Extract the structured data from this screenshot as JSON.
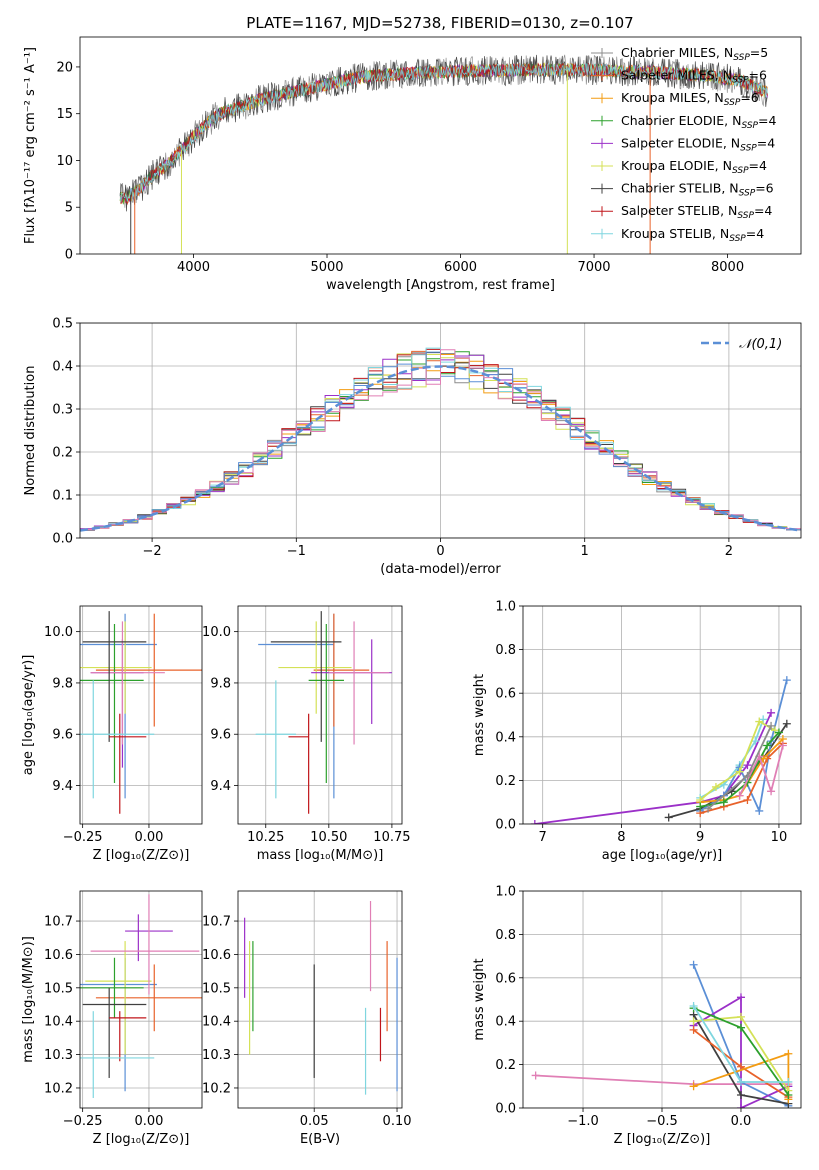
{
  "figure": {
    "title": "PLATE=1167, MJD=52738, FIBERID=0130, z=0.107"
  },
  "colors": {
    "chabrier_miles": "#8c8c8c",
    "salpeter_miles": "#e8622a",
    "kroupa_miles": "#f39c12",
    "chabrier_elodie": "#2ca02c",
    "salpeter_elodie": "#9b30c8",
    "kroupa_elodie": "#d4e157",
    "chabrier_stelib": "#404040",
    "salpeter_stelib": "#c0151a",
    "kroupa_stelib": "#7fd6df",
    "blue": "#5b8fd6",
    "pink": "#e07fb5",
    "gray": "#999999",
    "normal": "#5b8fd6"
  },
  "chart_data": [
    {
      "id": "spectrum",
      "type": "line",
      "xlabel": "wavelength [Angstrom, rest frame]",
      "ylabel": "Flux [fλ10⁻¹⁷ erg cm⁻² s⁻¹ A⁻¹]",
      "xlim": [
        3150,
        8550
      ],
      "ylim": [
        0,
        23.2
      ],
      "xticks": [
        4000,
        5000,
        6000,
        7000,
        8000
      ],
      "yticks": [
        0,
        5,
        10,
        15,
        20
      ],
      "legend_position": "top-right",
      "series": [
        {
          "name": "Chabrier MILES, N",
          "sub": "SSP",
          "eq": "=5",
          "color": "#8c8c8c",
          "marker": "+"
        },
        {
          "name": "Salpeter MILES, N",
          "sub": "SSP",
          "eq": "=6",
          "color": "#e8622a",
          "marker": "|"
        },
        {
          "name": "Kroupa MILES, N",
          "sub": "SSP",
          "eq": "=6",
          "color": "#f39c12",
          "marker": "|"
        },
        {
          "name": "Chabrier ELODIE, N",
          "sub": "SSP",
          "eq": "=4",
          "color": "#2ca02c",
          "marker": "+"
        },
        {
          "name": "Salpeter ELODIE, N",
          "sub": "SSP",
          "eq": "=4",
          "color": "#9b30c8",
          "marker": "|"
        },
        {
          "name": "Kroupa ELODIE, N",
          "sub": "SSP",
          "eq": "=4",
          "color": "#d4e157",
          "marker": "|"
        },
        {
          "name": "Chabrier STELIB, N",
          "sub": "SSP",
          "eq": "=6",
          "color": "#404040",
          "marker": "|"
        },
        {
          "name": "Salpeter STELIB, N",
          "sub": "SSP",
          "eq": "=4",
          "color": "#c0151a",
          "marker": "|"
        },
        {
          "name": "Kroupa STELIB, N",
          "sub": "SSP",
          "eq": "=4",
          "color": "#7fd6df",
          "marker": "|"
        }
      ],
      "continuum": {
        "x": [
          3500,
          3600,
          3700,
          3800,
          3900,
          4000,
          4100,
          4200,
          4300,
          4500,
          4700,
          4900,
          5100,
          5300,
          5500,
          5700,
          5900,
          6100,
          6300,
          6500,
          6700,
          6900,
          7100,
          7300,
          7500,
          7700,
          7900,
          8100,
          8300
        ],
        "y": [
          6.0,
          7.0,
          8.5,
          9.5,
          11.0,
          12.5,
          14.0,
          15.0,
          15.5,
          16.5,
          17.2,
          17.8,
          18.5,
          19.0,
          19.2,
          19.4,
          19.5,
          19.6,
          19.6,
          19.7,
          19.7,
          19.7,
          19.6,
          19.5,
          19.4,
          19.2,
          19.0,
          18.5,
          17.2
        ]
      }
    },
    {
      "id": "residuals",
      "type": "histogram",
      "xlabel": "(data-model)/error",
      "ylabel": "Normed distribution",
      "xlim": [
        -2.5,
        2.5
      ],
      "ylim": [
        0,
        0.5
      ],
      "xticks": [
        -2,
        -1,
        0,
        1,
        2
      ],
      "yticks": [
        0.0,
        0.1,
        0.2,
        0.3,
        0.4,
        0.5
      ],
      "grid": true,
      "legend_position": "top-right",
      "legend_label": "𝒩(0,1)",
      "bin_width": 0.1
    },
    {
      "id": "age_vs_Z",
      "type": "scatter",
      "xlabel": "Z [log₁₀(Z/Z⊙)]",
      "ylabel": "age  [log₁₀(age/yr)]",
      "xlim": [
        -0.26,
        0.2
      ],
      "ylim": [
        9.25,
        10.1
      ],
      "xticks": [
        -0.25,
        0.0
      ],
      "yticks": [
        9.4,
        9.6,
        9.8,
        10.0
      ],
      "grid": true,
      "points": [
        {
          "x": -0.09,
          "y": 9.95,
          "xerr": [
            0.22,
            0.12
          ],
          "yerr": [
            0.6,
            0.12
          ],
          "color": "#5b8fd6"
        },
        {
          "x": 0.02,
          "y": 9.85,
          "xerr": [
            0.22,
            0.2
          ],
          "yerr": [
            0.22,
            0.22
          ],
          "color": "#e8622a"
        },
        {
          "x": -0.09,
          "y": 9.86,
          "xerr": [
            0.18,
            0.1
          ],
          "yerr": [
            0.18,
            0.18
          ],
          "color": "#d4e157"
        },
        {
          "x": -0.13,
          "y": 9.81,
          "xerr": [
            0.14,
            0.11
          ],
          "yerr": [
            0.4,
            0.22
          ],
          "color": "#2ca02c"
        },
        {
          "x": -0.1,
          "y": 9.84,
          "xerr": [
            0.12,
            0.08
          ],
          "yerr": [
            0.37,
            0.13
          ],
          "color": "#9b30c8"
        },
        {
          "x": -0.1,
          "y": 9.84,
          "xerr": [
            0.12,
            0.16
          ],
          "yerr": [
            0.28,
            0.2
          ],
          "color": "#e07fb5"
        },
        {
          "x": -0.15,
          "y": 9.96,
          "xerr": [
            0.1,
            0.14
          ],
          "yerr": [
            0.39,
            0.12
          ],
          "color": "#404040"
        },
        {
          "x": -0.11,
          "y": 9.59,
          "xerr": [
            0.04,
            0.1
          ],
          "yerr": [
            0.3,
            0.09
          ],
          "color": "#c0151a"
        },
        {
          "x": -0.21,
          "y": 9.6,
          "xerr": [
            0.05,
            0.23
          ],
          "yerr": [
            0.25,
            0.21
          ],
          "color": "#7fd6df"
        }
      ]
    },
    {
      "id": "age_vs_mass",
      "type": "scatter",
      "xlabel": "mass [log₁₀(M/M⊙)]",
      "xlim": [
        10.14,
        10.79
      ],
      "ylim": [
        9.25,
        10.1
      ],
      "xticks": [
        10.25,
        10.5,
        10.75
      ],
      "yticks": [
        9.4,
        9.6,
        9.8,
        10.0
      ],
      "grid": true,
      "points": [
        {
          "x": 10.52,
          "y": 9.95,
          "xerr": [
            0.3,
            0.0
          ],
          "yerr": [
            0.6,
            0.12
          ],
          "color": "#5b8fd6"
        },
        {
          "x": 10.52,
          "y": 9.85,
          "xerr": [
            0.08,
            0.14
          ],
          "yerr": [
            0.22,
            0.22
          ],
          "color": "#e8622a"
        },
        {
          "x": 10.45,
          "y": 9.86,
          "xerr": [
            0.15,
            0.14
          ],
          "yerr": [
            0.18,
            0.18
          ],
          "color": "#d4e157"
        },
        {
          "x": 10.49,
          "y": 9.81,
          "xerr": [
            0.07,
            0.07
          ],
          "yerr": [
            0.4,
            0.22
          ],
          "color": "#2ca02c"
        },
        {
          "x": 10.67,
          "y": 9.84,
          "xerr": [
            0.24,
            0.08
          ],
          "yerr": [
            0.2,
            0.13
          ],
          "color": "#9b30c8"
        },
        {
          "x": 10.6,
          "y": 9.84,
          "xerr": [
            0.1,
            0.14
          ],
          "yerr": [
            0.28,
            0.2
          ],
          "color": "#e07fb5"
        },
        {
          "x": 10.47,
          "y": 9.96,
          "xerr": [
            0.2,
            0.08
          ],
          "yerr": [
            0.39,
            0.12
          ],
          "color": "#404040"
        },
        {
          "x": 10.42,
          "y": 9.59,
          "xerr": [
            0.08,
            0.0
          ],
          "yerr": [
            0.3,
            0.09
          ],
          "color": "#c0151a"
        },
        {
          "x": 10.29,
          "y": 9.6,
          "xerr": [
            0.08,
            0.08
          ],
          "yerr": [
            0.25,
            0.21
          ],
          "color": "#7fd6df"
        }
      ]
    },
    {
      "id": "weight_vs_age",
      "type": "line",
      "xlabel": "age  [log₁₀(age/yr)]",
      "ylabel": "mass weight",
      "xlim": [
        6.75,
        10.28
      ],
      "ylim": [
        0,
        1.0
      ],
      "xticks": [
        7,
        8,
        9,
        10
      ],
      "yticks": [
        0.0,
        0.2,
        0.4,
        0.6,
        0.8,
        1.0
      ],
      "grid": true,
      "series": [
        {
          "color": "#9b30c8",
          "x": [
            6.9,
            9.0,
            9.3,
            9.6,
            9.9
          ],
          "y": [
            0.0,
            0.1,
            0.13,
            0.27,
            0.51
          ]
        },
        {
          "color": "#404040",
          "x": [
            8.6,
            9.0,
            9.4,
            9.8,
            10.1
          ],
          "y": [
            0.03,
            0.07,
            0.15,
            0.3,
            0.46
          ]
        },
        {
          "color": "#7fd6df",
          "x": [
            9.0,
            9.3,
            9.5,
            9.7,
            9.8
          ],
          "y": [
            0.12,
            0.18,
            0.27,
            0.38,
            0.48
          ]
        },
        {
          "color": "#5b8fd6",
          "x": [
            9.0,
            9.3,
            9.5,
            9.75,
            9.9,
            10.1
          ],
          "y": [
            0.06,
            0.13,
            0.26,
            0.06,
            0.38,
            0.66
          ]
        },
        {
          "color": "#e8622a",
          "x": [
            9.0,
            9.3,
            9.6,
            9.85,
            10.05
          ],
          "y": [
            0.05,
            0.08,
            0.11,
            0.3,
            0.37
          ]
        },
        {
          "color": "#f39c12",
          "x": [
            9.0,
            9.3,
            9.5,
            9.8,
            10.05
          ],
          "y": [
            0.1,
            0.11,
            0.13,
            0.3,
            0.39
          ]
        },
        {
          "color": "#d4e157",
          "x": [
            9.0,
            9.2,
            9.5,
            9.75,
            9.95
          ],
          "y": [
            0.11,
            0.17,
            0.24,
            0.47,
            0.43
          ]
        },
        {
          "color": "#2ca02c",
          "x": [
            9.0,
            9.3,
            9.6,
            9.85,
            10.0
          ],
          "y": [
            0.08,
            0.1,
            0.19,
            0.36,
            0.42
          ]
        },
        {
          "color": "#e07fb5",
          "x": [
            9.5,
            9.75,
            9.9,
            10.05
          ],
          "y": [
            0.13,
            0.31,
            0.15,
            0.36
          ]
        },
        {
          "color": "#8c8c8c",
          "x": [
            9.1,
            9.6,
            9.9
          ],
          "y": [
            0.07,
            0.22,
            0.45
          ]
        }
      ]
    },
    {
      "id": "mass_vs_Z",
      "type": "scatter",
      "xlabel": "Z [log₁₀(Z/Z⊙)]",
      "ylabel": "mass [log₁₀(M/M⊙)]",
      "xlim": [
        -0.26,
        0.2
      ],
      "ylim": [
        10.14,
        10.79
      ],
      "xticks": [
        -0.25,
        0.0
      ],
      "yticks": [
        10.2,
        10.3,
        10.4,
        10.5,
        10.6,
        10.7
      ],
      "grid": true,
      "points": [
        {
          "x": -0.09,
          "y": 10.51,
          "xerr": [
            0.22,
            0.12
          ],
          "yerr": [
            0.32,
            0.08
          ],
          "color": "#5b8fd6"
        },
        {
          "x": 0.02,
          "y": 10.47,
          "xerr": [
            0.22,
            0.18
          ],
          "yerr": [
            0.1,
            0.1
          ],
          "color": "#e8622a"
        },
        {
          "x": -0.09,
          "y": 10.52,
          "xerr": [
            0.15,
            0.1
          ],
          "yerr": [
            0.22,
            0.12
          ],
          "color": "#d4e157"
        },
        {
          "x": -0.13,
          "y": 10.5,
          "xerr": [
            0.14,
            0.11
          ],
          "yerr": [
            0.09,
            0.09
          ],
          "color": "#2ca02c"
        },
        {
          "x": -0.04,
          "y": 10.67,
          "xerr": [
            0.05,
            0.13
          ],
          "yerr": [
            0.09,
            0.05
          ],
          "color": "#9b30c8"
        },
        {
          "x": 0.0,
          "y": 10.61,
          "xerr": [
            0.22,
            0.19
          ],
          "yerr": [
            0.13,
            0.17
          ],
          "color": "#e07fb5"
        },
        {
          "x": -0.15,
          "y": 10.45,
          "xerr": [
            0.1,
            0.14
          ],
          "yerr": [
            0.22,
            0.05
          ],
          "color": "#404040"
        },
        {
          "x": -0.11,
          "y": 10.41,
          "xerr": [
            0.04,
            0.1
          ],
          "yerr": [
            0.13,
            0.02
          ],
          "color": "#c0151a"
        },
        {
          "x": -0.21,
          "y": 10.29,
          "xerr": [
            0.05,
            0.23
          ],
          "yerr": [
            0.12,
            0.14
          ],
          "color": "#7fd6df"
        }
      ]
    },
    {
      "id": "mass_vs_ebv",
      "type": "scatter",
      "xlabel": "E(B-V)",
      "xlim": [
        0.004,
        0.103
      ],
      "ylim": [
        10.14,
        10.79
      ],
      "xticks": [
        0.05,
        0.1
      ],
      "yticks": [
        10.2,
        10.3,
        10.4,
        10.5,
        10.6,
        10.7
      ],
      "grid": true,
      "points": [
        {
          "x": 0.1,
          "y": 10.51,
          "xerr": [
            0,
            0
          ],
          "yerr": [
            0.32,
            0.08
          ],
          "color": "#5b8fd6"
        },
        {
          "x": 0.094,
          "y": 10.47,
          "xerr": [
            0,
            0
          ],
          "yerr": [
            0.1,
            0.17
          ],
          "color": "#e8622a"
        },
        {
          "x": 0.011,
          "y": 10.47,
          "xerr": [
            0,
            0
          ],
          "yerr": [
            0.17,
            0.17
          ],
          "color": "#d4e157"
        },
        {
          "x": 0.013,
          "y": 10.5,
          "xerr": [
            0,
            0
          ],
          "yerr": [
            0.13,
            0.14
          ],
          "color": "#2ca02c"
        },
        {
          "x": 0.008,
          "y": 10.59,
          "xerr": [
            0,
            0
          ],
          "yerr": [
            0.12,
            0.12
          ],
          "color": "#9b30c8"
        },
        {
          "x": 0.084,
          "y": 10.62,
          "xerr": [
            0,
            0
          ],
          "yerr": [
            0.13,
            0.14
          ],
          "color": "#e07fb5"
        },
        {
          "x": 0.05,
          "y": 10.4,
          "xerr": [
            0,
            0
          ],
          "yerr": [
            0.17,
            0.17
          ],
          "color": "#404040"
        },
        {
          "x": 0.09,
          "y": 10.36,
          "xerr": [
            0,
            0
          ],
          "yerr": [
            0.08,
            0.08
          ],
          "color": "#c0151a"
        },
        {
          "x": 0.081,
          "y": 10.3,
          "xerr": [
            0,
            0
          ],
          "yerr": [
            0.12,
            0.14
          ],
          "color": "#7fd6df"
        }
      ]
    },
    {
      "id": "weight_vs_Z",
      "type": "line",
      "xlabel": "Z [log₁₀(Z/Z⊙)]",
      "ylabel": "mass weight",
      "xlim": [
        -1.38,
        0.38
      ],
      "ylim": [
        0,
        1.0
      ],
      "xticks": [
        -1.0,
        -0.5,
        0.0
      ],
      "yticks": [
        0.0,
        0.2,
        0.4,
        0.6,
        0.8,
        1.0
      ],
      "grid": true,
      "series": [
        {
          "color": "#e07fb5",
          "x": [
            -1.3,
            -0.3,
            0.3
          ],
          "y": [
            0.15,
            0.11,
            0.11
          ]
        },
        {
          "color": "#5b8fd6",
          "x": [
            -0.3,
            0.0,
            0.3
          ],
          "y": [
            0.66,
            0.12,
            0.01
          ]
        },
        {
          "color": "#9b30c8",
          "x": [
            -0.3,
            0.0,
            0.0,
            0.3
          ],
          "y": [
            0.38,
            0.51,
            0.0,
            0.1
          ]
        },
        {
          "color": "#404040",
          "x": [
            -0.3,
            0.0,
            0.3
          ],
          "y": [
            0.43,
            0.06,
            0.02
          ]
        },
        {
          "color": "#e8622a",
          "x": [
            -0.3,
            0.0,
            0.3
          ],
          "y": [
            0.36,
            0.19,
            0.05
          ]
        },
        {
          "color": "#f39c12",
          "x": [
            -0.3,
            0.3,
            0.3
          ],
          "y": [
            0.1,
            0.25,
            0.04
          ]
        },
        {
          "color": "#d4e157",
          "x": [
            -0.3,
            0.0,
            0.3
          ],
          "y": [
            0.4,
            0.42,
            0.08
          ]
        },
        {
          "color": "#2ca02c",
          "x": [
            -0.3,
            0.0,
            0.3
          ],
          "y": [
            0.46,
            0.37,
            0.06
          ]
        },
        {
          "color": "#7fd6df",
          "x": [
            -0.3,
            0.0,
            0.3
          ],
          "y": [
            0.47,
            0.12,
            0.12
          ]
        }
      ]
    }
  ]
}
